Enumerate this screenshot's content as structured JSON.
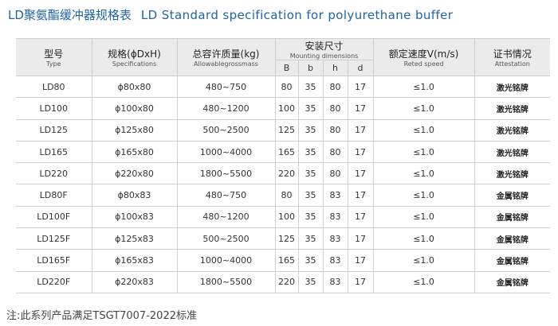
{
  "title_zh": "LD聚氨酯缓冲器规格表",
  "title_en": "LD Standard specification for polyurethane buffer",
  "table": {
    "columns": [
      {
        "zh": "型号",
        "en": "Type"
      },
      {
        "zh": "规格(ϕDxH)",
        "en": "Specifications"
      },
      {
        "zh": "总容许质量(kg)",
        "en": "Allowablegrossmass"
      },
      {
        "zh": "额定速度V(m/s)",
        "en": "Reted speed"
      },
      {
        "zh": "证书情况",
        "en": "Attestation"
      }
    ],
    "mounting": {
      "zh": "安装尺寸",
      "en": "Mounting dimensions",
      "sub": [
        "B",
        "b",
        "h",
        "d"
      ]
    },
    "rows": [
      [
        "LD80",
        "ϕ80x80",
        "480~750",
        80,
        35,
        80,
        17,
        "≤1.0",
        "激光铭牌"
      ],
      [
        "LD100",
        "ϕ100x80",
        "480~1200",
        100,
        35,
        80,
        17,
        "≤1.0",
        "激光铭牌"
      ],
      [
        "LD125",
        "ϕ125x80",
        "500~2500",
        125,
        35,
        80,
        17,
        "≤1.0",
        "激光铭牌"
      ],
      [
        "LD165",
        "ϕ165x80",
        "1000~4000",
        165,
        35,
        80,
        17,
        "≤1.0",
        "激光铭牌"
      ],
      [
        "LD220",
        "ϕ220x80",
        "1800~5500",
        220,
        35,
        80,
        17,
        "≤1.0",
        "激光铭牌"
      ],
      [
        "LD80F",
        "ϕ80x83",
        "480~750",
        80,
        35,
        83,
        17,
        "≤1.0",
        "金属铭牌"
      ],
      [
        "LD100F",
        "ϕ100x83",
        "480~1200",
        100,
        35,
        83,
        17,
        "≤1.0",
        "金属铭牌"
      ],
      [
        "LD125F",
        "ϕ125x83",
        "500~2500",
        125,
        35,
        83,
        17,
        "≤1.0",
        "金属铭牌"
      ],
      [
        "LD165F",
        "ϕ165x83",
        "1000~4000",
        165,
        35,
        83,
        17,
        "≤1.0",
        "金属铭牌"
      ],
      [
        "LD220F",
        "ϕ220x83",
        "1800~5500",
        220,
        35,
        83,
        17,
        "≤1.0",
        "金属铭牌"
      ]
    ]
  },
  "note": "注:此系列产品满足TSGT7007-2022标准"
}
